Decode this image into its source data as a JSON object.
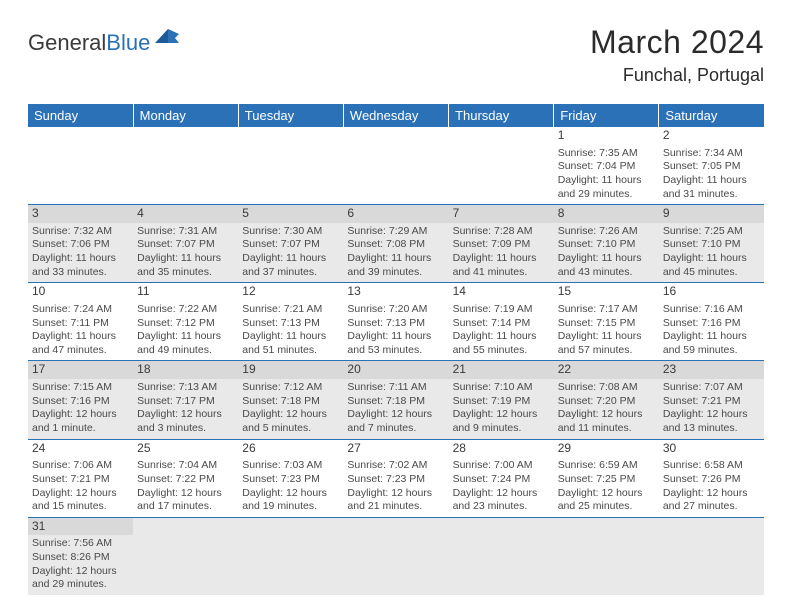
{
  "logo": {
    "text1": "General",
    "text2": "Blue"
  },
  "title": "March 2024",
  "subtitle": "Funchal, Portugal",
  "colors": {
    "accent": "#2a71b8",
    "shadeLight": "#e9e9e9",
    "shadeDark": "#d9d9d9",
    "text": "#333333"
  },
  "weekdays": [
    "Sunday",
    "Monday",
    "Tuesday",
    "Wednesday",
    "Thursday",
    "Friday",
    "Saturday"
  ],
  "weeks": [
    [
      null,
      null,
      null,
      null,
      null,
      {
        "n": "1",
        "sr": "Sunrise: 7:35 AM",
        "ss": "Sunset: 7:04 PM",
        "dl": "Daylight: 11 hours and 29 minutes."
      },
      {
        "n": "2",
        "sr": "Sunrise: 7:34 AM",
        "ss": "Sunset: 7:05 PM",
        "dl": "Daylight: 11 hours and 31 minutes."
      }
    ],
    [
      {
        "n": "3",
        "sr": "Sunrise: 7:32 AM",
        "ss": "Sunset: 7:06 PM",
        "dl": "Daylight: 11 hours and 33 minutes."
      },
      {
        "n": "4",
        "sr": "Sunrise: 7:31 AM",
        "ss": "Sunset: 7:07 PM",
        "dl": "Daylight: 11 hours and 35 minutes."
      },
      {
        "n": "5",
        "sr": "Sunrise: 7:30 AM",
        "ss": "Sunset: 7:07 PM",
        "dl": "Daylight: 11 hours and 37 minutes."
      },
      {
        "n": "6",
        "sr": "Sunrise: 7:29 AM",
        "ss": "Sunset: 7:08 PM",
        "dl": "Daylight: 11 hours and 39 minutes."
      },
      {
        "n": "7",
        "sr": "Sunrise: 7:28 AM",
        "ss": "Sunset: 7:09 PM",
        "dl": "Daylight: 11 hours and 41 minutes."
      },
      {
        "n": "8",
        "sr": "Sunrise: 7:26 AM",
        "ss": "Sunset: 7:10 PM",
        "dl": "Daylight: 11 hours and 43 minutes."
      },
      {
        "n": "9",
        "sr": "Sunrise: 7:25 AM",
        "ss": "Sunset: 7:10 PM",
        "dl": "Daylight: 11 hours and 45 minutes."
      }
    ],
    [
      {
        "n": "10",
        "sr": "Sunrise: 7:24 AM",
        "ss": "Sunset: 7:11 PM",
        "dl": "Daylight: 11 hours and 47 minutes."
      },
      {
        "n": "11",
        "sr": "Sunrise: 7:22 AM",
        "ss": "Sunset: 7:12 PM",
        "dl": "Daylight: 11 hours and 49 minutes."
      },
      {
        "n": "12",
        "sr": "Sunrise: 7:21 AM",
        "ss": "Sunset: 7:13 PM",
        "dl": "Daylight: 11 hours and 51 minutes."
      },
      {
        "n": "13",
        "sr": "Sunrise: 7:20 AM",
        "ss": "Sunset: 7:13 PM",
        "dl": "Daylight: 11 hours and 53 minutes."
      },
      {
        "n": "14",
        "sr": "Sunrise: 7:19 AM",
        "ss": "Sunset: 7:14 PM",
        "dl": "Daylight: 11 hours and 55 minutes."
      },
      {
        "n": "15",
        "sr": "Sunrise: 7:17 AM",
        "ss": "Sunset: 7:15 PM",
        "dl": "Daylight: 11 hours and 57 minutes."
      },
      {
        "n": "16",
        "sr": "Sunrise: 7:16 AM",
        "ss": "Sunset: 7:16 PM",
        "dl": "Daylight: 11 hours and 59 minutes."
      }
    ],
    [
      {
        "n": "17",
        "sr": "Sunrise: 7:15 AM",
        "ss": "Sunset: 7:16 PM",
        "dl": "Daylight: 12 hours and 1 minute."
      },
      {
        "n": "18",
        "sr": "Sunrise: 7:13 AM",
        "ss": "Sunset: 7:17 PM",
        "dl": "Daylight: 12 hours and 3 minutes."
      },
      {
        "n": "19",
        "sr": "Sunrise: 7:12 AM",
        "ss": "Sunset: 7:18 PM",
        "dl": "Daylight: 12 hours and 5 minutes."
      },
      {
        "n": "20",
        "sr": "Sunrise: 7:11 AM",
        "ss": "Sunset: 7:18 PM",
        "dl": "Daylight: 12 hours and 7 minutes."
      },
      {
        "n": "21",
        "sr": "Sunrise: 7:10 AM",
        "ss": "Sunset: 7:19 PM",
        "dl": "Daylight: 12 hours and 9 minutes."
      },
      {
        "n": "22",
        "sr": "Sunrise: 7:08 AM",
        "ss": "Sunset: 7:20 PM",
        "dl": "Daylight: 12 hours and 11 minutes."
      },
      {
        "n": "23",
        "sr": "Sunrise: 7:07 AM",
        "ss": "Sunset: 7:21 PM",
        "dl": "Daylight: 12 hours and 13 minutes."
      }
    ],
    [
      {
        "n": "24",
        "sr": "Sunrise: 7:06 AM",
        "ss": "Sunset: 7:21 PM",
        "dl": "Daylight: 12 hours and 15 minutes."
      },
      {
        "n": "25",
        "sr": "Sunrise: 7:04 AM",
        "ss": "Sunset: 7:22 PM",
        "dl": "Daylight: 12 hours and 17 minutes."
      },
      {
        "n": "26",
        "sr": "Sunrise: 7:03 AM",
        "ss": "Sunset: 7:23 PM",
        "dl": "Daylight: 12 hours and 19 minutes."
      },
      {
        "n": "27",
        "sr": "Sunrise: 7:02 AM",
        "ss": "Sunset: 7:23 PM",
        "dl": "Daylight: 12 hours and 21 minutes."
      },
      {
        "n": "28",
        "sr": "Sunrise: 7:00 AM",
        "ss": "Sunset: 7:24 PM",
        "dl": "Daylight: 12 hours and 23 minutes."
      },
      {
        "n": "29",
        "sr": "Sunrise: 6:59 AM",
        "ss": "Sunset: 7:25 PM",
        "dl": "Daylight: 12 hours and 25 minutes."
      },
      {
        "n": "30",
        "sr": "Sunrise: 6:58 AM",
        "ss": "Sunset: 7:26 PM",
        "dl": "Daylight: 12 hours and 27 minutes."
      }
    ],
    [
      {
        "n": "31",
        "sr": "Sunrise: 7:56 AM",
        "ss": "Sunset: 8:26 PM",
        "dl": "Daylight: 12 hours and 29 minutes."
      },
      null,
      null,
      null,
      null,
      null,
      null
    ]
  ]
}
